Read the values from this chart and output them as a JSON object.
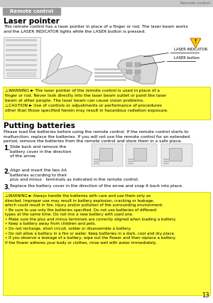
{
  "page_bg": "#ffffff",
  "header_bar_color": "#c8c8c8",
  "header_text": "Remote control",
  "header_text_color": "#666666",
  "badge_color": "#999999",
  "badge_text": "Remote control",
  "laser_title": "Laser pointer",
  "laser_body": "This remote control has a laser pointer in place of a finger or rod. The laser beam works\nand the LASER INDICATOR lights while the LASER button is pressed.",
  "laser_indicator_label": "LASER INDICATOR",
  "laser_button_label": "LASER button",
  "warning_bg": "#ffff44",
  "warning_border": "#dddd00",
  "warning1_text": "⚠WARNING ► The laser pointer of the remote control is used in place of a\nfinger or rod. Never look directly into the laser beam outlet or point the laser\nbeam at other people. The laser beam can cause vision problems.\n⚠CAUTION ► Use of controls or adjustments or performance of procedures\nother than those specified herein may result in hazardous radiation exposure.",
  "batteries_title": "Putting batteries",
  "batteries_intro": "Please load the batteries before using the remote control. If the remote control starts to\nmalfunction, replace the batteries. If you will not use the remote control for an extended\nperiod, remove the batteries from the remote control and store them in a safe place.",
  "step1_num": "1.",
  "step1_text": "Slide back and remove the\nbattery cover in the direction\nof the arrow.",
  "step2_num": "2.",
  "step2_text": "Align and insert the two AA\nbatteries according to their\nplus and minus   terminals as indicated in the remote control.",
  "step3_num": "3.",
  "step3_text": "Replace the battery cover in the direction of the arrow and snap it back into place.",
  "warning2_text": "⚠WARNING ► Always handle the batteries with care and use them only as\ndirected. Improper use may result in battery explosion, cracking or leakage,\nwhich could result in fire, injury and/or pollution of the surrounding environment.\n• Be sure to use only the batteries specified. Do not use batteries of different\ntypes at the same time. Do not mix a new battery with used one.\n• Make sure the plus and minus terminals are correctly aligned when loading a battery.\n• Keep a battery away from children and pets.\n• Do not recharge, short circuit, solder or disassemble a battery.\n• Do not allow a battery in a fire or water. Keep batteries in a dark, cool and dry place.\n• If you observe a leakage of a battery, wipe out the flower and then replace a battery.\nIf the flower adheres your body or clothes, rinse well with water immediately.",
  "page_num": "13"
}
